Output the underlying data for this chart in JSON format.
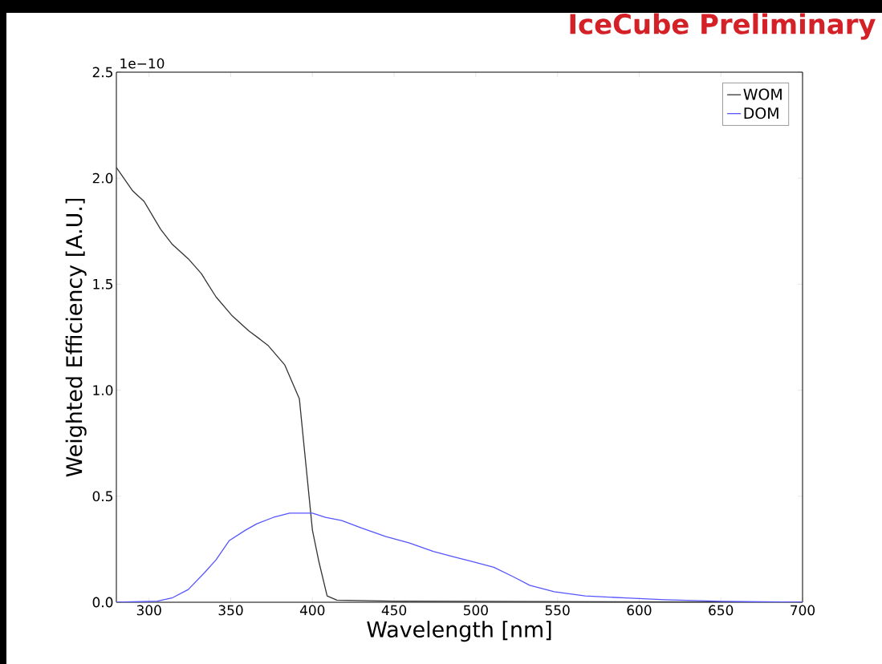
{
  "chart_data": {
    "type": "line",
    "xlabel": "Wavelength [nm]",
    "ylabel": "Weighted Efficiency [A.U.]",
    "annotations": [
      "1e−10",
      "IceCube Preliminary"
    ],
    "xlim": [
      280,
      700
    ],
    "xticks": [
      300,
      350,
      400,
      450,
      500,
      550,
      600,
      650,
      700
    ],
    "ylim": [
      0,
      2.5
    ],
    "yticks": [
      {
        "value": 0,
        "label": "0.0"
      },
      {
        "value": 0.5,
        "label": "0.5"
      },
      {
        "value": 1,
        "label": "1.0"
      },
      {
        "value": 1.5,
        "label": "1.5"
      },
      {
        "value": 2,
        "label": "2.0"
      },
      {
        "value": 2.5,
        "label": "2.5"
      }
    ],
    "grid": false,
    "legend": "top right",
    "marker": "none",
    "line_style": "solid",
    "series": [
      {
        "name": "WOM",
        "color": "#333333",
        "x": [
          280,
          290,
          297,
          307,
          314,
          324,
          332,
          341,
          351,
          361,
          368,
          373,
          383,
          392,
          396,
          400,
          404,
          409,
          415,
          449,
          700
        ],
        "values": [
          2.05,
          1.94,
          1.89,
          1.76,
          1.69,
          1.62,
          1.55,
          1.44,
          1.35,
          1.28,
          1.24,
          1.21,
          1.12,
          0.96,
          0.65,
          0.34,
          0.19,
          0.03,
          0.01,
          0.005,
          0
        ]
      },
      {
        "name": "DOM",
        "color": "#5555ff",
        "x": [
          280,
          305,
          314,
          324,
          334,
          341,
          349,
          359,
          366,
          376,
          386,
          400,
          408,
          418,
          430,
          445,
          459,
          474,
          486,
          499,
          511,
          523,
          533,
          548,
          567,
          592,
          616,
          651,
          700
        ],
        "values": [
          0,
          0.005,
          0.02,
          0.06,
          0.14,
          0.2,
          0.29,
          0.34,
          0.37,
          0.4,
          0.42,
          0.42,
          0.4,
          0.385,
          0.35,
          0.31,
          0.28,
          0.24,
          0.215,
          0.19,
          0.165,
          0.12,
          0.08,
          0.05,
          0.03,
          0.02,
          0.012,
          0.004,
          0
        ]
      }
    ]
  }
}
